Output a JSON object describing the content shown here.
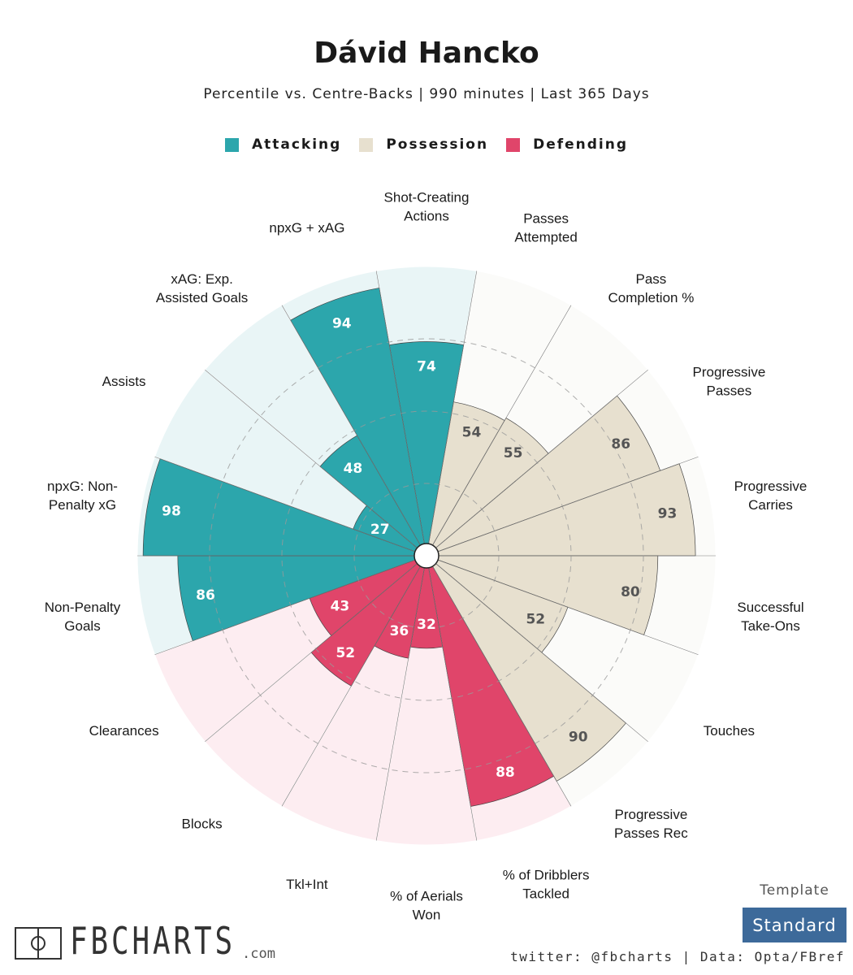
{
  "header": {
    "title": "Dávid Hancko",
    "subtitle": "Percentile vs. Centre-Backs | 990 minutes | Last 365 Days"
  },
  "legend": [
    {
      "label": "Attacking",
      "color": "#2ca6ac"
    },
    {
      "label": "Possession",
      "color": "#e7e0cf"
    },
    {
      "label": "Defending",
      "color": "#e0456a"
    }
  ],
  "chart_data": {
    "type": "radar-bar",
    "title": "Dávid Hancko",
    "subtitle": "Percentile vs. Centre-Backs | 990 minutes | Last 365 Days",
    "rmax": 100,
    "categories": [
      {
        "label": "Shot-Creating\nActions",
        "value": 74,
        "group": "Attacking"
      },
      {
        "label": "Passes\nAttempted",
        "value": 54,
        "group": "Possession"
      },
      {
        "label": "Pass\nCompletion %",
        "value": 55,
        "group": "Possession"
      },
      {
        "label": "Progressive\nPasses",
        "value": 86,
        "group": "Possession"
      },
      {
        "label": "Progressive\nCarries",
        "value": 93,
        "group": "Possession"
      },
      {
        "label": "Successful\nTake-Ons",
        "value": 80,
        "group": "Possession"
      },
      {
        "label": "Touches",
        "value": 52,
        "group": "Possession"
      },
      {
        "label": "Progressive\nPasses Rec",
        "value": 90,
        "group": "Possession"
      },
      {
        "label": "% of Dribblers\nTackled",
        "value": 88,
        "group": "Defending"
      },
      {
        "label": "% of Aerials\nWon",
        "value": 32,
        "group": "Defending"
      },
      {
        "label": "Tkl+Int",
        "value": 36,
        "group": "Defending"
      },
      {
        "label": "Blocks",
        "value": 52,
        "group": "Defending"
      },
      {
        "label": "Clearances",
        "value": 43,
        "group": "Defending"
      },
      {
        "label": "Non-Penalty\nGoals",
        "value": 86,
        "group": "Attacking"
      },
      {
        "label": "npxG: Non-\nPenalty xG",
        "value": 98,
        "group": "Attacking"
      },
      {
        "label": "Assists",
        "value": 27,
        "group": "Attacking"
      },
      {
        "label": "xAG: Exp.\nAssisted Goals",
        "value": 48,
        "group": "Attacking"
      },
      {
        "label": "npxG + xAG",
        "value": 94,
        "group": "Attacking"
      }
    ],
    "group_colors": {
      "Attacking": {
        "fill": "#2ca6ac",
        "bg": "#e9f5f6",
        "text": "#ffffff"
      },
      "Possession": {
        "fill": "#e7e0cf",
        "bg": "#fbfbf9",
        "text": "#555555"
      },
      "Defending": {
        "fill": "#e0456a",
        "bg": "#fdedf1",
        "text": "#ffffff"
      }
    }
  },
  "footer": {
    "brand_name": "FBCHARTS",
    "brand_domain": ".com",
    "template_label": "Template",
    "template_value": "Standard",
    "credit": "twitter: @fbcharts | Data: Opta/FBref"
  }
}
